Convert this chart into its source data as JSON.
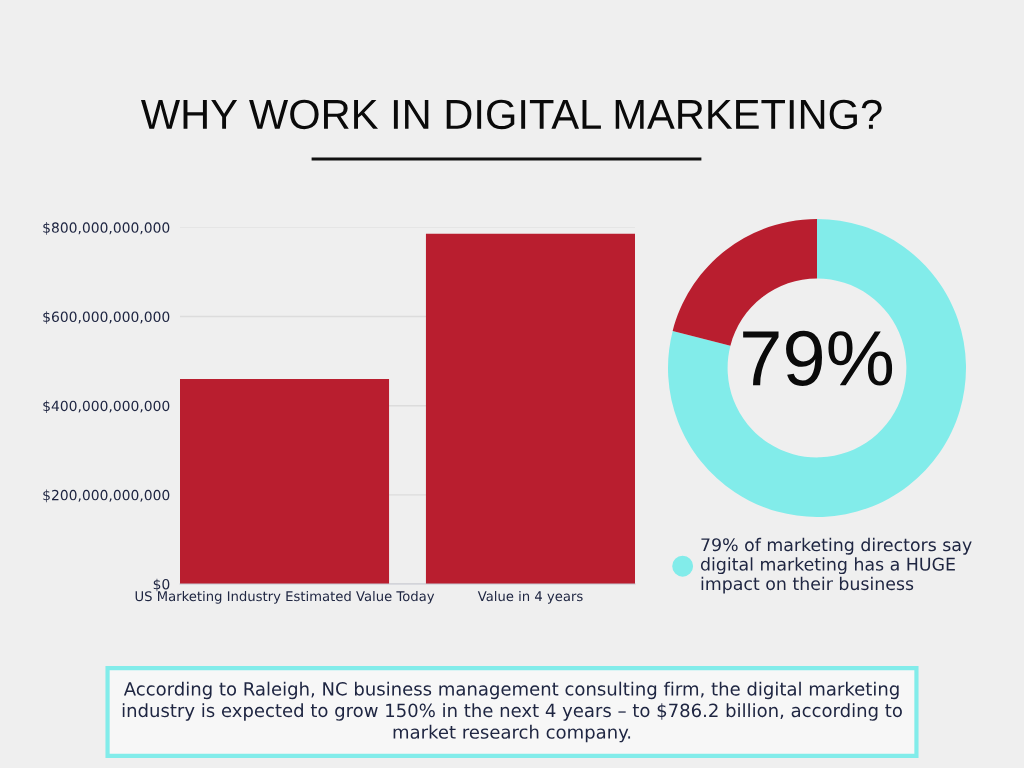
{
  "chart_data": [
    {
      "type": "bar",
      "title": "WHY WORK IN DIGITAL MARKETING?",
      "categories": [
        "US Marketing Industry Estimated Value Today",
        "Value in 4 years"
      ],
      "values": [
        460000000000,
        786000000000
      ],
      "color": "#b91e2f",
      "ylim": [
        0,
        800000000000
      ],
      "yticks": [
        {
          "value": 0,
          "label": "$0"
        },
        {
          "value": 200000000000,
          "label": "$200,000,000,000"
        },
        {
          "value": 400000000000,
          "label": "$400,000,000,000"
        },
        {
          "value": 600000000000,
          "label": "$600,000,000,000"
        },
        {
          "value": 800000000000,
          "label": "$800,000,000,000"
        }
      ],
      "grid": "y",
      "annotations": [
        "According to Raleigh, NC business management consulting firm, the digital marketing industry is expected to grow 150% in the next 4 years – to $786.2 billion, according to market research company."
      ]
    },
    {
      "type": "donut",
      "categories": [
        "79% of marketing directors say digital marketing has a HUGE impact on their business",
        null
      ],
      "values": [
        79,
        21
      ],
      "colors": [
        "#82ecea",
        "#b91e2f"
      ],
      "legend": "bottom",
      "annotations": [
        "79%"
      ]
    }
  ]
}
